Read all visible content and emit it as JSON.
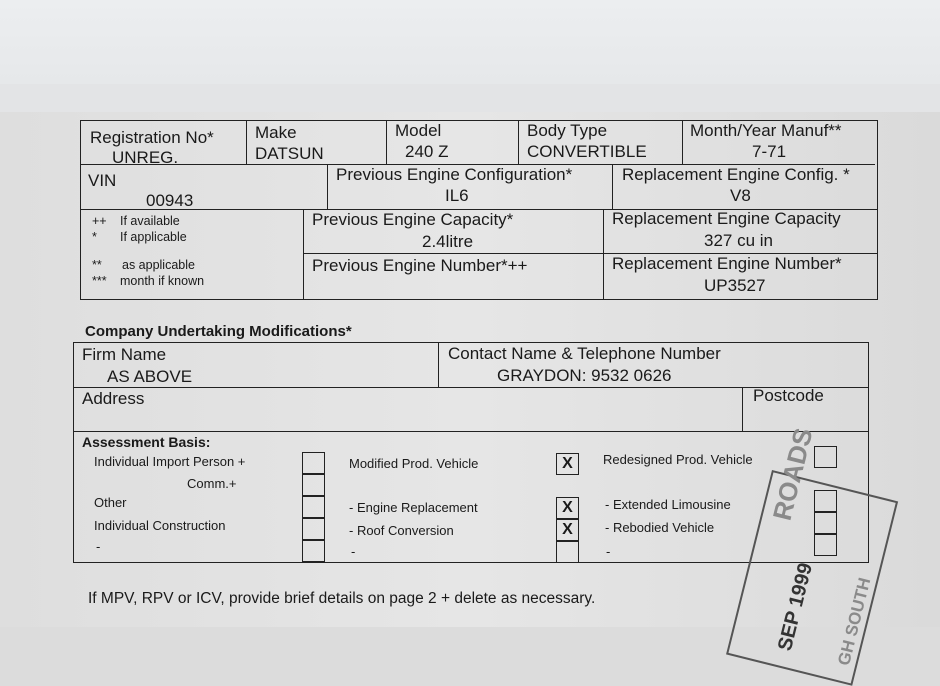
{
  "vehicle": {
    "registration_label": "Registration No*",
    "registration_value": "UNREG.",
    "make_label": "Make",
    "make_value": "DATSUN",
    "model_label": "Model",
    "model_value": "240 Z",
    "body_label": "Body Type",
    "body_value": "CONVERTIBLE",
    "manuf_label": "Month/Year Manuf**",
    "manuf_value": "7-71",
    "vin_label": "VIN",
    "vin_value": "00943",
    "prev_config_label": "Previous Engine Configuration*",
    "prev_config_value": "IL6",
    "repl_config_label": "Replacement Engine Config. *",
    "repl_config_value": "V8",
    "prev_capacity_label": "Previous Engine Capacity*",
    "prev_capacity_value": "2.4litre",
    "repl_capacity_label": "Replacement Engine Capacity",
    "repl_capacity_value": "327 cu in",
    "prev_number_label": "Previous Engine Number*++",
    "prev_number_value": "",
    "repl_number_label": "Replacement Engine Number*",
    "repl_number_value": "UP3527",
    "notes": [
      {
        "sym": "++",
        "text": "If available"
      },
      {
        "sym": "*",
        "text": "If applicable"
      },
      {
        "sym": "**",
        "text": "as applicable"
      },
      {
        "sym": "***",
        "text": "month if known"
      }
    ]
  },
  "company": {
    "title": "Company Undertaking Modifications*",
    "firm_label": "Firm Name",
    "firm_value": "AS ABOVE",
    "contact_label": "Contact Name & Telephone Number",
    "contact_value": "GRAYDON:  9532 0626",
    "address_label": "Address",
    "postcode_label": "Postcode"
  },
  "assessment": {
    "title": "Assessment Basis:",
    "col1": [
      {
        "label": "Individual Import Person +",
        "checked": false
      },
      {
        "label": "Comm.+",
        "checked": false
      },
      {
        "label": "Other",
        "checked": false
      },
      {
        "label": "Individual Construction",
        "checked": false
      },
      {
        "label": "-",
        "checked": false
      }
    ],
    "col2": [
      {
        "label": "Modified Prod. Vehicle",
        "checked": true
      },
      {
        "label": "- Engine Replacement",
        "checked": true
      },
      {
        "label": "- Roof Conversion",
        "checked": true
      },
      {
        "label": "-",
        "checked": false
      }
    ],
    "col3": [
      {
        "label": "Redesigned Prod. Vehicle",
        "checked": false
      },
      {
        "label": "- Extended Limousine",
        "checked": false
      },
      {
        "label": "- Rebodied Vehicle",
        "checked": false
      },
      {
        "label": "-",
        "checked": false
      }
    ],
    "check_mark": "X"
  },
  "footer_note": "If MPV, RPV or ICV, provide brief details on page 2 + delete as necessary.",
  "stamp": {
    "line1": "ROADS",
    "line2": "SEP 1999",
    "line3": "GH SOUTH"
  }
}
